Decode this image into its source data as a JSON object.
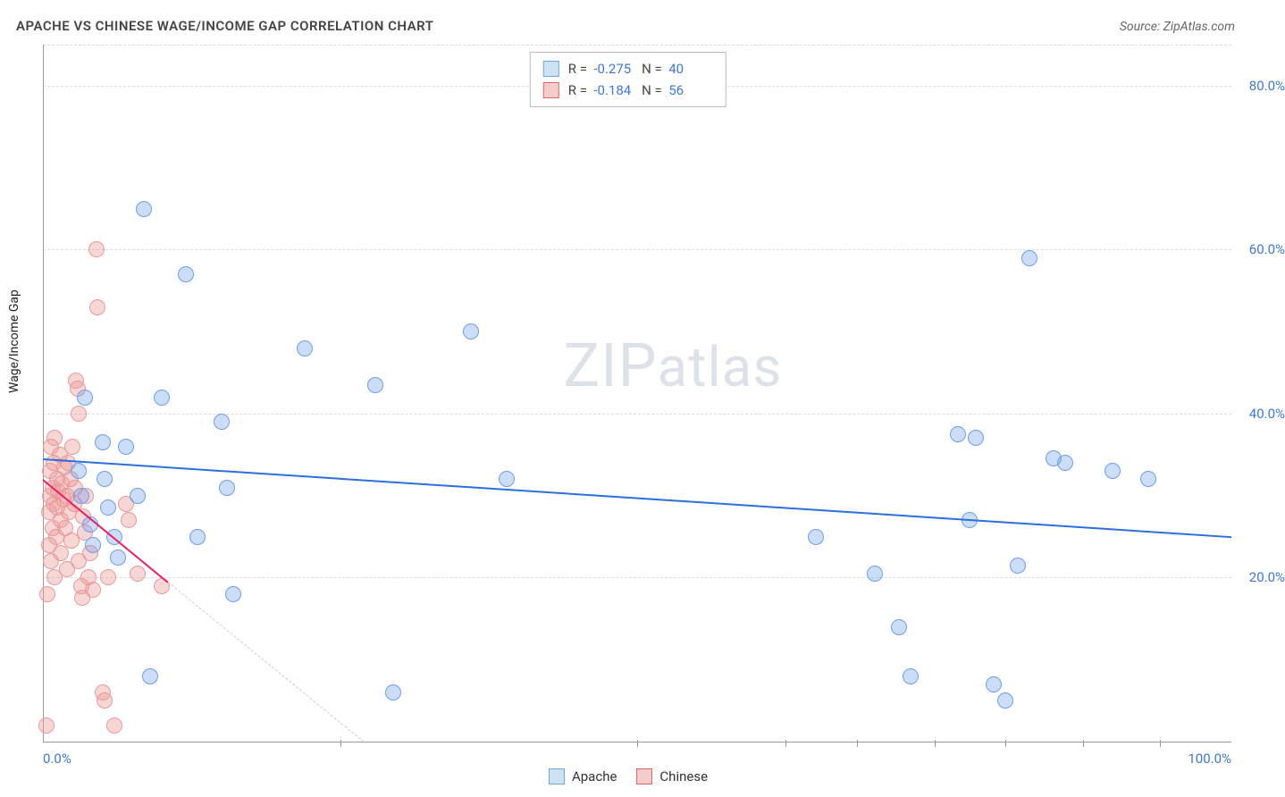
{
  "title": "APACHE VS CHINESE WAGE/INCOME GAP CORRELATION CHART",
  "source": "Source: ZipAtlas.com",
  "y_axis_label": "Wage/Income Gap",
  "watermark_big": "ZIP",
  "watermark_small": "atlas",
  "chart": {
    "type": "scatter",
    "xlim": [
      0,
      100
    ],
    "ylim": [
      0,
      85
    ],
    "x_ticks_major": [
      0,
      100
    ],
    "x_tick_labels": [
      "0.0%",
      "100.0%"
    ],
    "x_ticks_minor": [
      25,
      50,
      62.5,
      68.5,
      75,
      81,
      87.5,
      94
    ],
    "y_ticks": [
      20,
      40,
      60,
      80
    ],
    "y_tick_labels": [
      "20.0%",
      "40.0%",
      "60.0%",
      "80.0%"
    ],
    "marker_radius": 9,
    "background_color": "#ffffff",
    "grid_color": "#dcdcdc",
    "axis_color": "#999999",
    "tick_label_color": "#3c78d8"
  },
  "series": [
    {
      "name": "Apache",
      "swatch_fill": "#cfe2f3",
      "swatch_stroke": "#6fa8dc",
      "point_fill": "rgba(109,158,235,0.35)",
      "point_stroke": "#6d9eeb",
      "trend_color": "#2a6fdb",
      "trend_width": 2.5,
      "trend": {
        "x1": 0,
        "y1": 34.5,
        "x2": 100,
        "y2": 25.0
      },
      "R": "-0.275",
      "N": "40",
      "points": [
        [
          3.0,
          33.0
        ],
        [
          3.2,
          30.0
        ],
        [
          3.5,
          42.0
        ],
        [
          4.0,
          26.5
        ],
        [
          4.2,
          24.0
        ],
        [
          5.0,
          36.5
        ],
        [
          5.2,
          32.0
        ],
        [
          5.5,
          28.5
        ],
        [
          6.0,
          25.0
        ],
        [
          6.3,
          22.5
        ],
        [
          7.0,
          36.0
        ],
        [
          8.0,
          30.0
        ],
        [
          8.5,
          65.0
        ],
        [
          9.0,
          8.0
        ],
        [
          10.0,
          42.0
        ],
        [
          12.0,
          57.0
        ],
        [
          13.0,
          25.0
        ],
        [
          15.0,
          39.0
        ],
        [
          15.5,
          31.0
        ],
        [
          16.0,
          18.0
        ],
        [
          22.0,
          48.0
        ],
        [
          28.0,
          43.5
        ],
        [
          29.5,
          6.0
        ],
        [
          36.0,
          50.0
        ],
        [
          39.0,
          32.0
        ],
        [
          65.0,
          25.0
        ],
        [
          70.0,
          20.5
        ],
        [
          72.0,
          14.0
        ],
        [
          73.0,
          8.0
        ],
        [
          77.0,
          37.5
        ],
        [
          78.0,
          27.0
        ],
        [
          80.0,
          7.0
        ],
        [
          81.0,
          5.0
        ],
        [
          82.0,
          21.5
        ],
        [
          83.0,
          59.0
        ],
        [
          85.0,
          34.5
        ],
        [
          86.0,
          34.0
        ],
        [
          90.0,
          33.0
        ],
        [
          93.0,
          32.0
        ],
        [
          78.5,
          37.0
        ]
      ]
    },
    {
      "name": "Chinese",
      "swatch_fill": "#f4cccc",
      "swatch_stroke": "#e06666",
      "point_fill": "rgba(234,153,153,0.40)",
      "point_stroke": "#ea9999",
      "trend_color": "#e91e63",
      "trend_width": 2,
      "trend": {
        "x1": 0,
        "y1": 32.0,
        "x2": 10.5,
        "y2": 19.5
      },
      "trend_ext": {
        "color": "#cccccc",
        "dash": true,
        "x1": 10.5,
        "y1": 19.5,
        "x2": 27.0,
        "y2": 0.0
      },
      "R": "-0.184",
      "N": "56",
      "points": [
        [
          0.3,
          2.0
        ],
        [
          0.4,
          18.0
        ],
        [
          0.5,
          24.0
        ],
        [
          0.5,
          28.0
        ],
        [
          0.6,
          30.0
        ],
        [
          0.6,
          33.0
        ],
        [
          0.7,
          36.0
        ],
        [
          0.7,
          22.0
        ],
        [
          0.8,
          26.0
        ],
        [
          0.8,
          31.0
        ],
        [
          0.9,
          29.0
        ],
        [
          0.9,
          34.0
        ],
        [
          1.0,
          37.0
        ],
        [
          1.0,
          20.0
        ],
        [
          1.1,
          25.0
        ],
        [
          1.2,
          32.0
        ],
        [
          1.2,
          28.5
        ],
        [
          1.3,
          30.5
        ],
        [
          1.4,
          35.0
        ],
        [
          1.5,
          27.0
        ],
        [
          1.5,
          23.0
        ],
        [
          1.6,
          31.5
        ],
        [
          1.7,
          29.5
        ],
        [
          1.8,
          33.5
        ],
        [
          1.9,
          26.0
        ],
        [
          2.0,
          30.0
        ],
        [
          2.0,
          21.0
        ],
        [
          2.1,
          34.0
        ],
        [
          2.2,
          28.0
        ],
        [
          2.3,
          32.0
        ],
        [
          2.4,
          24.5
        ],
        [
          2.5,
          36.0
        ],
        [
          2.6,
          29.0
        ],
        [
          2.7,
          31.0
        ],
        [
          2.8,
          44.0
        ],
        [
          2.9,
          43.0
        ],
        [
          3.0,
          40.0
        ],
        [
          3.0,
          22.0
        ],
        [
          3.2,
          19.0
        ],
        [
          3.3,
          17.5
        ],
        [
          3.4,
          27.5
        ],
        [
          3.5,
          25.5
        ],
        [
          3.6,
          30.0
        ],
        [
          3.8,
          20.0
        ],
        [
          4.0,
          23.0
        ],
        [
          4.2,
          18.5
        ],
        [
          4.5,
          60.0
        ],
        [
          4.6,
          53.0
        ],
        [
          5.0,
          6.0
        ],
        [
          5.2,
          5.0
        ],
        [
          5.5,
          20.0
        ],
        [
          6.0,
          2.0
        ],
        [
          7.0,
          29.0
        ],
        [
          7.2,
          27.0
        ],
        [
          8.0,
          20.5
        ],
        [
          10.0,
          19.0
        ]
      ]
    }
  ],
  "legend_bottom": [
    {
      "label": "Apache",
      "fill": "#cfe2f3",
      "stroke": "#6fa8dc"
    },
    {
      "label": "Chinese",
      "fill": "#f4cccc",
      "stroke": "#e06666"
    }
  ]
}
